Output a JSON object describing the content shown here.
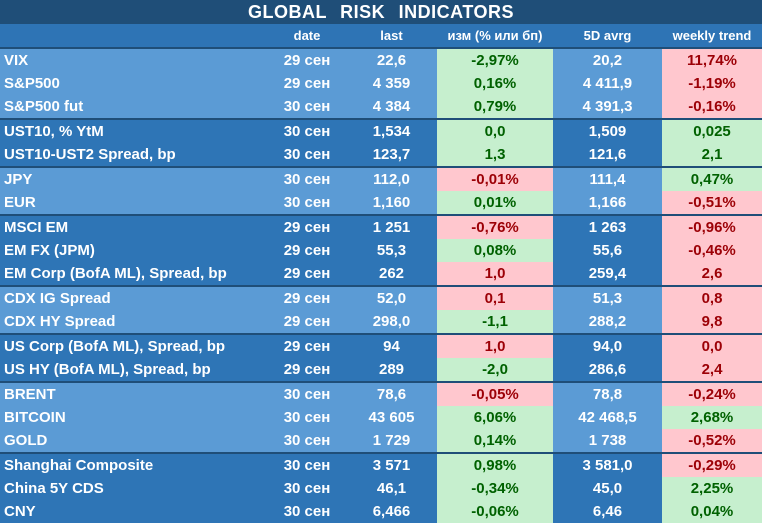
{
  "title": "GLOBAL   RISK   INDICATORS",
  "headers": [
    "",
    "date",
    "last",
    "изм (% или бп)",
    "5D avrg",
    "weekly trend"
  ],
  "rows": [
    {
      "name": "VIX",
      "date": "29 сен",
      "last": "22,6",
      "chg": "-2,97%",
      "chg_sign": "pos",
      "avg": "20,2",
      "trend": "11,74%",
      "trend_sign": "neg",
      "shade": "light",
      "group_start": true
    },
    {
      "name": "S&P500",
      "date": "29 сен",
      "last": "4 359",
      "chg": "0,16%",
      "chg_sign": "pos",
      "avg": "4 411,9",
      "trend": "-1,19%",
      "trend_sign": "neg",
      "shade": "light",
      "group_start": false
    },
    {
      "name": "S&P500 fut",
      "date": "30 сен",
      "last": "4 384",
      "chg": "0,79%",
      "chg_sign": "pos",
      "avg": "4 391,3",
      "trend": "-0,16%",
      "trend_sign": "neg",
      "shade": "light",
      "group_start": false
    },
    {
      "name": "UST10, % YtM",
      "date": "30 сен",
      "last": "1,534",
      "chg": "0,0",
      "chg_sign": "pos",
      "avg": "1,509",
      "trend": "0,025",
      "trend_sign": "pos",
      "shade": "dark",
      "group_start": true
    },
    {
      "name": "UST10-UST2 Spread, bp",
      "date": "30 сен",
      "last": "123,7",
      "chg": "1,3",
      "chg_sign": "pos",
      "avg": "121,6",
      "trend": "2,1",
      "trend_sign": "pos",
      "shade": "dark",
      "group_start": false
    },
    {
      "name": "JPY",
      "date": "30 сен",
      "last": "112,0",
      "chg": "-0,01%",
      "chg_sign": "neg",
      "avg": "111,4",
      "trend": "0,47%",
      "trend_sign": "pos",
      "shade": "light",
      "group_start": true
    },
    {
      "name": "EUR",
      "date": "30 сен",
      "last": "1,160",
      "chg": "0,01%",
      "chg_sign": "pos",
      "avg": "1,166",
      "trend": "-0,51%",
      "trend_sign": "neg",
      "shade": "light",
      "group_start": false
    },
    {
      "name": "MSCI EM",
      "date": "29 сен",
      "last": "1 251",
      "chg": "-0,76%",
      "chg_sign": "neg",
      "avg": "1 263",
      "trend": "-0,96%",
      "trend_sign": "neg",
      "shade": "dark",
      "group_start": true
    },
    {
      "name": "EM FX (JPM)",
      "date": "29 сен",
      "last": "55,3",
      "chg": "0,08%",
      "chg_sign": "pos",
      "avg": "55,6",
      "trend": "-0,46%",
      "trend_sign": "neg",
      "shade": "dark",
      "group_start": false
    },
    {
      "name": "EM Corp (BofA ML), Spread, bp",
      "date": "29 сен",
      "last": "262",
      "chg": "1,0",
      "chg_sign": "neg",
      "avg": "259,4",
      "trend": "2,6",
      "trend_sign": "neg",
      "shade": "dark",
      "group_start": false
    },
    {
      "name": "CDX IG Spread",
      "date": "29 сен",
      "last": "52,0",
      "chg": "0,1",
      "chg_sign": "neg",
      "avg": "51,3",
      "trend": "0,8",
      "trend_sign": "neg",
      "shade": "light",
      "group_start": true
    },
    {
      "name": "CDX HY Spread",
      "date": "29 сен",
      "last": "298,0",
      "chg": "-1,1",
      "chg_sign": "pos",
      "avg": "288,2",
      "trend": "9,8",
      "trend_sign": "neg",
      "shade": "light",
      "group_start": false
    },
    {
      "name": "US Corp (BofA ML), Spread, bp",
      "date": "29 сен",
      "last": "94",
      "chg": "1,0",
      "chg_sign": "neg",
      "avg": "94,0",
      "trend": "0,0",
      "trend_sign": "neg",
      "shade": "dark",
      "group_start": true
    },
    {
      "name": "US HY (BofA ML), Spread, bp",
      "date": "29 сен",
      "last": "289",
      "chg": "-2,0",
      "chg_sign": "pos",
      "avg": "286,6",
      "trend": "2,4",
      "trend_sign": "neg",
      "shade": "dark",
      "group_start": false
    },
    {
      "name": "BRENT",
      "date": "30 сен",
      "last": "78,6",
      "chg": "-0,05%",
      "chg_sign": "neg",
      "avg": "78,8",
      "trend": "-0,24%",
      "trend_sign": "neg",
      "shade": "light",
      "group_start": true
    },
    {
      "name": "BITCOIN",
      "date": "30 сен",
      "last": "43 605",
      "chg": "6,06%",
      "chg_sign": "pos",
      "avg": "42 468,5",
      "trend": "2,68%",
      "trend_sign": "pos",
      "shade": "light",
      "group_start": false
    },
    {
      "name": "GOLD",
      "date": "30 сен",
      "last": "1 729",
      "chg": "0,14%",
      "chg_sign": "pos",
      "avg": "1 738",
      "trend": "-0,52%",
      "trend_sign": "neg",
      "shade": "light",
      "group_start": false
    },
    {
      "name": "Shanghai Composite",
      "date": "30 сен",
      "last": "3 571",
      "chg": "0,98%",
      "chg_sign": "pos",
      "avg": "3 581,0",
      "trend": "-0,29%",
      "trend_sign": "neg",
      "shade": "dark",
      "group_start": true
    },
    {
      "name": "China 5Y CDS",
      "date": "30 сен",
      "last": "46,1",
      "chg": "-0,34%",
      "chg_sign": "pos",
      "avg": "45,0",
      "trend": "2,25%",
      "trend_sign": "pos",
      "shade": "dark",
      "group_start": false
    },
    {
      "name": "CNY",
      "date": "30 сен",
      "last": "6,466",
      "chg": "-0,06%",
      "chg_sign": "pos",
      "avg": "6,46",
      "trend": "0,04%",
      "trend_sign": "pos",
      "shade": "dark",
      "group_start": false
    }
  ]
}
